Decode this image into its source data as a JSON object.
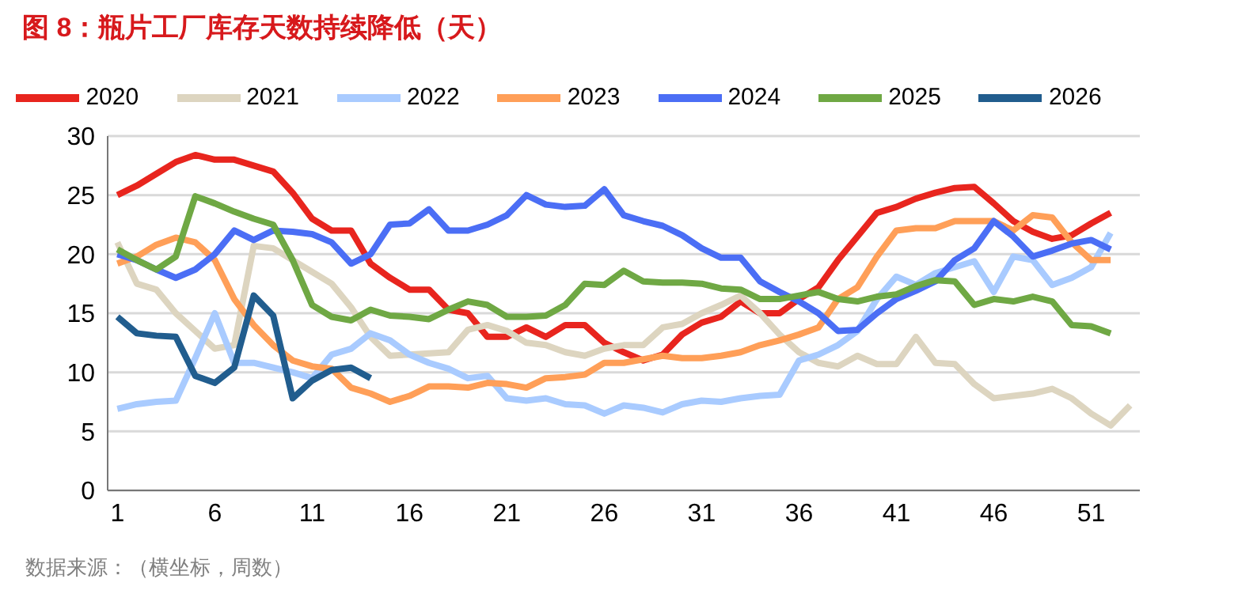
{
  "chart_data": {
    "type": "line",
    "title": "图 8：瓶片工厂库存天数持续降低（天）",
    "annotations": [
      "数据来源：（横坐标，周数）"
    ],
    "x": [
      1,
      2,
      3,
      4,
      5,
      6,
      7,
      8,
      9,
      10,
      11,
      12,
      13,
      14,
      15,
      16,
      17,
      18,
      19,
      20,
      21,
      22,
      23,
      24,
      25,
      26,
      27,
      28,
      29,
      30,
      31,
      32,
      33,
      34,
      35,
      36,
      37,
      38,
      39,
      40,
      41,
      42,
      43,
      44,
      45,
      46,
      47,
      48,
      49,
      50,
      51,
      52,
      53
    ],
    "xlim": [
      0.5,
      53.5
    ],
    "xticks": [
      1,
      6,
      11,
      16,
      21,
      26,
      31,
      36,
      41,
      46,
      51
    ],
    "ylim": [
      0,
      30
    ],
    "yticks": [
      0,
      5,
      10,
      15,
      20,
      25,
      30
    ],
    "grid": "y",
    "legend": "top",
    "marker": "none",
    "line_style": "solid",
    "series": [
      {
        "name": "2020",
        "color": "#e8251e",
        "values": [
          25,
          25.8,
          26.8,
          27.8,
          28.4,
          28,
          28,
          27.5,
          27,
          25.2,
          23,
          22,
          22,
          19.2,
          18,
          17,
          17,
          15.3,
          15,
          13,
          13,
          13.8,
          13,
          14,
          14,
          12.5,
          11.7,
          11,
          11.5,
          13.2,
          14.2,
          14.7,
          16,
          15,
          15,
          16.2,
          17.2,
          19.5,
          21.5,
          23.5,
          24,
          24.7,
          25.2,
          25.6,
          25.7,
          24.3,
          22.8,
          21.9,
          21.3,
          21.6,
          22.6,
          23.5,
          null
        ]
      },
      {
        "name": "2021",
        "color": "#ddd5c0",
        "values": [
          21,
          17.5,
          17,
          15,
          13.5,
          12,
          12.3,
          20.7,
          20.5,
          19.5,
          18.5,
          17.5,
          15.5,
          13,
          11.4,
          11.5,
          11.6,
          11.7,
          13.6,
          14,
          13.5,
          12.5,
          12.3,
          11.7,
          11.4,
          12,
          12.3,
          12.3,
          13.8,
          14.1,
          15,
          15.7,
          16.5,
          15,
          13.2,
          11.7,
          10.8,
          10.5,
          11.4,
          10.7,
          10.7,
          13,
          10.8,
          10.7,
          9,
          7.8,
          8,
          8.2,
          8.6,
          7.8,
          6.5,
          5.5,
          7.2
        ]
      },
      {
        "name": "2022",
        "color": "#a9cbff",
        "values": [
          6.9,
          7.3,
          7.5,
          7.6,
          11.2,
          15,
          10.8,
          10.8,
          10.4,
          10,
          9.5,
          11.5,
          12,
          13.3,
          12.7,
          11.5,
          10.8,
          10.3,
          9.5,
          9.7,
          7.8,
          7.6,
          7.8,
          7.3,
          7.2,
          6.5,
          7.2,
          7,
          6.6,
          7.3,
          7.6,
          7.5,
          7.8,
          8,
          8.1,
          11,
          11.5,
          12.3,
          13.5,
          16.2,
          18.1,
          17.4,
          18.4,
          18.9,
          19.4,
          16.8,
          19.8,
          19.5,
          17.4,
          18,
          18.9,
          21.8,
          null
        ]
      },
      {
        "name": "2023",
        "color": "#ff9f58",
        "values": [
          19.2,
          19.8,
          20.8,
          21.4,
          21,
          19.5,
          16.2,
          14,
          12.3,
          11,
          10.5,
          10.3,
          8.7,
          8.2,
          7.5,
          8,
          8.8,
          8.8,
          8.7,
          9.1,
          9,
          8.7,
          9.5,
          9.6,
          9.8,
          10.8,
          10.8,
          11.1,
          11.4,
          11.2,
          11.2,
          11.4,
          11.7,
          12.3,
          12.7,
          13.2,
          13.8,
          16.2,
          17.2,
          19.8,
          22,
          22.2,
          22.2,
          22.8,
          22.8,
          22.8,
          22,
          23.3,
          23.1,
          21,
          19.5,
          19.5,
          null
        ]
      },
      {
        "name": "2024",
        "color": "#4b6ef5",
        "values": [
          20,
          19.5,
          18.7,
          18,
          18.7,
          20,
          22,
          21.2,
          22,
          21.9,
          21.7,
          21,
          19.2,
          20,
          22.5,
          22.6,
          23.8,
          22,
          22,
          22.5,
          23.3,
          25,
          24.2,
          24,
          24.1,
          25.5,
          23.3,
          22.8,
          22.4,
          21.6,
          20.5,
          19.7,
          19.7,
          17.7,
          16.8,
          16,
          15,
          13.5,
          13.6,
          15,
          16.2,
          16.9,
          17.7,
          19.5,
          20.5,
          22.8,
          21.5,
          19.8,
          20.3,
          20.9,
          21.2,
          20.4,
          null
        ]
      },
      {
        "name": "2025",
        "color": "#6fa844",
        "values": [
          20.4,
          19.5,
          18.7,
          19.8,
          24.9,
          24.3,
          23.6,
          23,
          22.5,
          19.5,
          15.7,
          14.7,
          14.4,
          15.3,
          14.8,
          14.7,
          14.5,
          15.3,
          16,
          15.7,
          14.7,
          14.7,
          14.8,
          15.7,
          17.5,
          17.4,
          18.6,
          17.7,
          17.6,
          17.6,
          17.5,
          17.1,
          17,
          16.2,
          16.2,
          16.5,
          16.8,
          16.2,
          16,
          16.4,
          16.6,
          17.3,
          17.8,
          17.7,
          15.7,
          16.2,
          16,
          16.4,
          16,
          14,
          13.9,
          13.3,
          null
        ]
      },
      {
        "name": "2026",
        "color": "#215d8e",
        "values": [
          14.7,
          13.3,
          13.1,
          13,
          9.7,
          9.1,
          10.4,
          16.5,
          14.8,
          7.8,
          9.3,
          10.2,
          10.4,
          9.5,
          null,
          null,
          null,
          null,
          null,
          null,
          null,
          null,
          null,
          null,
          null,
          null,
          null,
          null,
          null,
          null,
          null,
          null,
          null,
          null,
          null,
          null,
          null,
          null,
          null,
          null,
          null,
          null,
          null,
          null,
          null,
          null,
          null,
          null,
          null,
          null,
          null,
          null,
          null
        ]
      }
    ]
  }
}
